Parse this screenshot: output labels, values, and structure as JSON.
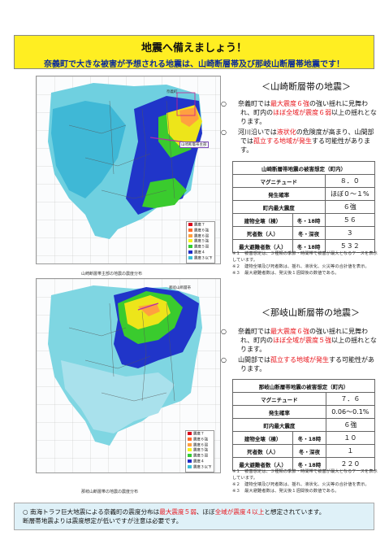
{
  "banner": {
    "title": "地震へ備えましょう！",
    "subtitle": "奈義町で大きな被害が予想される地震は、山崎断層帯及び那岐山断層帯地震です！"
  },
  "section1": {
    "title": "＜山崎断層帯の地震＞",
    "map_caption": "山崎断層帯主部の地震の震度分布",
    "map_labels": {
      "town": "奈義町",
      "fault": "山崎断層帯主部"
    },
    "bullet1": {
      "a": "奈義町では",
      "b": "最大震度６強",
      "c": "の強い揺れに見舞われ、町内の",
      "d": "ほぼ全域が震度６弱",
      "e": "以上の揺れとなります。"
    },
    "bullet2": {
      "a": "河川沿いでは",
      "b": "液状化",
      "c": "の危険度が高まり、山間部では",
      "d": "孤立する地域が発生",
      "e": "する可能性があります。"
    },
    "table": {
      "title": "山崎断層帯地震の被害想定（町内）",
      "rows": [
        {
          "label": "マグニチュード",
          "sub": "",
          "value": "８．０"
        },
        {
          "label": "発生確率",
          "sub": "",
          "value": "ほぼ０～１%"
        },
        {
          "label": "町内最大震度",
          "sub": "",
          "value": "６強"
        },
        {
          "label": "建物全壊（棟）",
          "sub": "冬・18時",
          "value": "５６"
        },
        {
          "label": "死者数（人）",
          "sub": "冬・深夜",
          "value": "３"
        },
        {
          "label": "最大避難者数（人）",
          "sub": "冬・18時",
          "value": "５３２"
        }
      ]
    },
    "notes": [
      "※１　被害想定は、３種類の季節・時間帯で被害が最大となるケースを表示しています。",
      "※２　建物全壊及び死者数は、揺れ、液状化、火災等の合計値を表示。",
      "※３　最大避難者数は、発災後１週間後の数値である。"
    ]
  },
  "section2": {
    "title": "＜那岐山断層帯の地震＞",
    "map_caption": "那岐山断層帯の地震の震度分布",
    "map_labels": {
      "fault": "那岐山断層帯"
    },
    "bullet1": {
      "a": "奈義町では",
      "b": "最大震度６強",
      "c": "の強い揺れに見舞われ、町内の",
      "d": "ほぼ全域が震度５強",
      "e": "以上の揺れとなります。"
    },
    "bullet2": {
      "a": "山間部では",
      "b": "孤立する地域が発生",
      "c": "する可能性があります。"
    },
    "table": {
      "title": "那岐山断層帯地震の被害想定（町内）",
      "rows": [
        {
          "label": "マグニチュード",
          "sub": "",
          "value": "７．６"
        },
        {
          "label": "発生確率",
          "sub": "",
          "value": "0.06～0.1%"
        },
        {
          "label": "町内最大震度",
          "sub": "",
          "value": "６強"
        },
        {
          "label": "建物全壊（棟）",
          "sub": "冬・18時",
          "value": "１０"
        },
        {
          "label": "死者数（人）",
          "sub": "冬・深夜",
          "value": "１"
        },
        {
          "label": "最大避難者数（人）",
          "sub": "冬・18時",
          "value": "２２０"
        }
      ]
    },
    "notes": [
      "※１　被害想定は、３種類の季節・時間帯で被害が最大となるケースを表示しています。",
      "※２　建物全壊及び死者数は、揺れ、液状化、火災等の合計値を表示。",
      "※３　最大避難者数は、発災後１週間後の数値である。"
    ]
  },
  "legend": [
    "震度７",
    "震度６強",
    "震度６弱",
    "震度５強",
    "震度５弱",
    "震度４",
    "震度３以下"
  ],
  "legend_colors": [
    "#d9001b",
    "#ff6b2b",
    "#ffa040",
    "#f6f21c",
    "#33cc33",
    "#1f2bc6",
    "#3bc0d6"
  ],
  "footer": {
    "a": "南海トラフ巨大地震による奈義町の震度分布は",
    "b": "最大震度５弱",
    "c": "、ほぼ",
    "d": "全域が震度４以上",
    "e": "と想定されています。",
    "line2": "断層帯地震よりは震度想定が低いですが注意は必要です。"
  }
}
